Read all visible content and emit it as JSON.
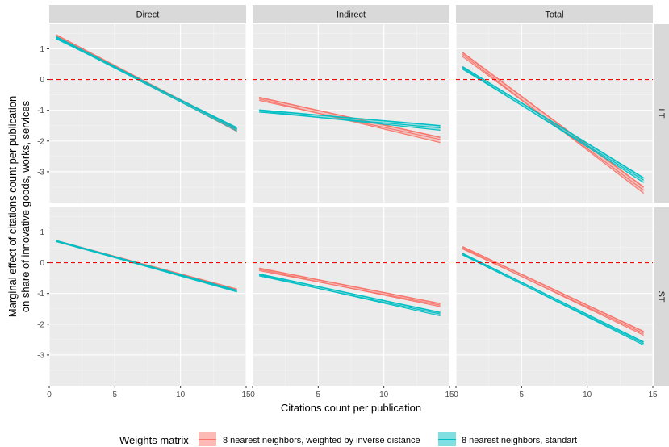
{
  "chart_data": {
    "type": "line",
    "xlabel": "Citations count per publication",
    "ylabel_lines": [
      "Marginal effect of citations count per publication",
      "on share of innovative goods, works, services"
    ],
    "xlim": [
      0,
      15
    ],
    "ylim": [
      -4,
      1.8
    ],
    "x_ticks": [
      0,
      5,
      10,
      15
    ],
    "y_ticks": [
      1,
      0,
      -1,
      -2,
      -3
    ],
    "x_tick_labels": [
      "0",
      "5",
      "10",
      "15"
    ],
    "y_tick_labels": [
      "1",
      "0",
      "-1",
      "-2",
      "-3"
    ],
    "reference_line": {
      "y": 0,
      "style": "dashed",
      "color": "#ff0000"
    },
    "columns": [
      "Direct",
      "Indirect",
      "Total"
    ],
    "rows": [
      "LT",
      "ST"
    ],
    "legend": {
      "title": "Weights matrix",
      "position": "bottom",
      "entries": [
        {
          "label": "8 nearest neighbors, weighted by inverse distance",
          "color": "#F8766D"
        },
        {
          "label": "8 nearest neighbors, standart",
          "color": "#00BFC4"
        }
      ]
    },
    "x_range": [
      0.5,
      14.3
    ],
    "panels": [
      {
        "row": "LT",
        "col": "Direct",
        "series": [
          {
            "color": "#F8766D",
            "lines": [
              [
                1.46,
                -1.63
              ],
              [
                1.42,
                -1.69
              ],
              [
                1.38,
                -1.57
              ]
            ]
          },
          {
            "color": "#00BFC4",
            "lines": [
              [
                1.4,
                -1.61
              ],
              [
                1.36,
                -1.67
              ],
              [
                1.33,
                -1.56
              ]
            ]
          }
        ]
      },
      {
        "row": "LT",
        "col": "Indirect",
        "series": [
          {
            "color": "#F8766D",
            "lines": [
              [
                -0.58,
                -1.88
              ],
              [
                -0.63,
                -2.05
              ],
              [
                -0.68,
                -1.95
              ]
            ]
          },
          {
            "color": "#00BFC4",
            "lines": [
              [
                -0.99,
                -1.5
              ],
              [
                -1.02,
                -1.65
              ],
              [
                -1.06,
                -1.57
              ]
            ]
          }
        ]
      },
      {
        "row": "LT",
        "col": "Total",
        "series": [
          {
            "color": "#F8766D",
            "lines": [
              [
                0.88,
                -3.5
              ],
              [
                0.82,
                -3.7
              ],
              [
                0.75,
                -3.6
              ]
            ]
          },
          {
            "color": "#00BFC4",
            "lines": [
              [
                0.42,
                -3.2
              ],
              [
                0.38,
                -3.35
              ],
              [
                0.34,
                -3.27
              ]
            ]
          }
        ]
      },
      {
        "row": "ST",
        "col": "Direct",
        "series": [
          {
            "color": "#F8766D",
            "lines": [
              [
                0.72,
                -0.86
              ],
              [
                0.7,
                -0.92
              ],
              [
                0.69,
                -0.89
              ]
            ]
          },
          {
            "color": "#00BFC4",
            "lines": [
              [
                0.72,
                -0.9
              ],
              [
                0.7,
                -0.95
              ],
              [
                0.69,
                -0.92
              ]
            ]
          }
        ]
      },
      {
        "row": "ST",
        "col": "Indirect",
        "series": [
          {
            "color": "#F8766D",
            "lines": [
              [
                -0.18,
                -1.33
              ],
              [
                -0.22,
                -1.43
              ],
              [
                -0.26,
                -1.38
              ]
            ]
          },
          {
            "color": "#00BFC4",
            "lines": [
              [
                -0.37,
                -1.62
              ],
              [
                -0.4,
                -1.73
              ],
              [
                -0.43,
                -1.67
              ]
            ]
          }
        ]
      },
      {
        "row": "ST",
        "col": "Total",
        "series": [
          {
            "color": "#F8766D",
            "lines": [
              [
                0.52,
                -2.24
              ],
              [
                0.48,
                -2.36
              ],
              [
                0.45,
                -2.3
              ]
            ]
          },
          {
            "color": "#00BFC4",
            "lines": [
              [
                0.3,
                -2.58
              ],
              [
                0.27,
                -2.68
              ],
              [
                0.25,
                -2.63
              ]
            ]
          }
        ]
      }
    ]
  }
}
